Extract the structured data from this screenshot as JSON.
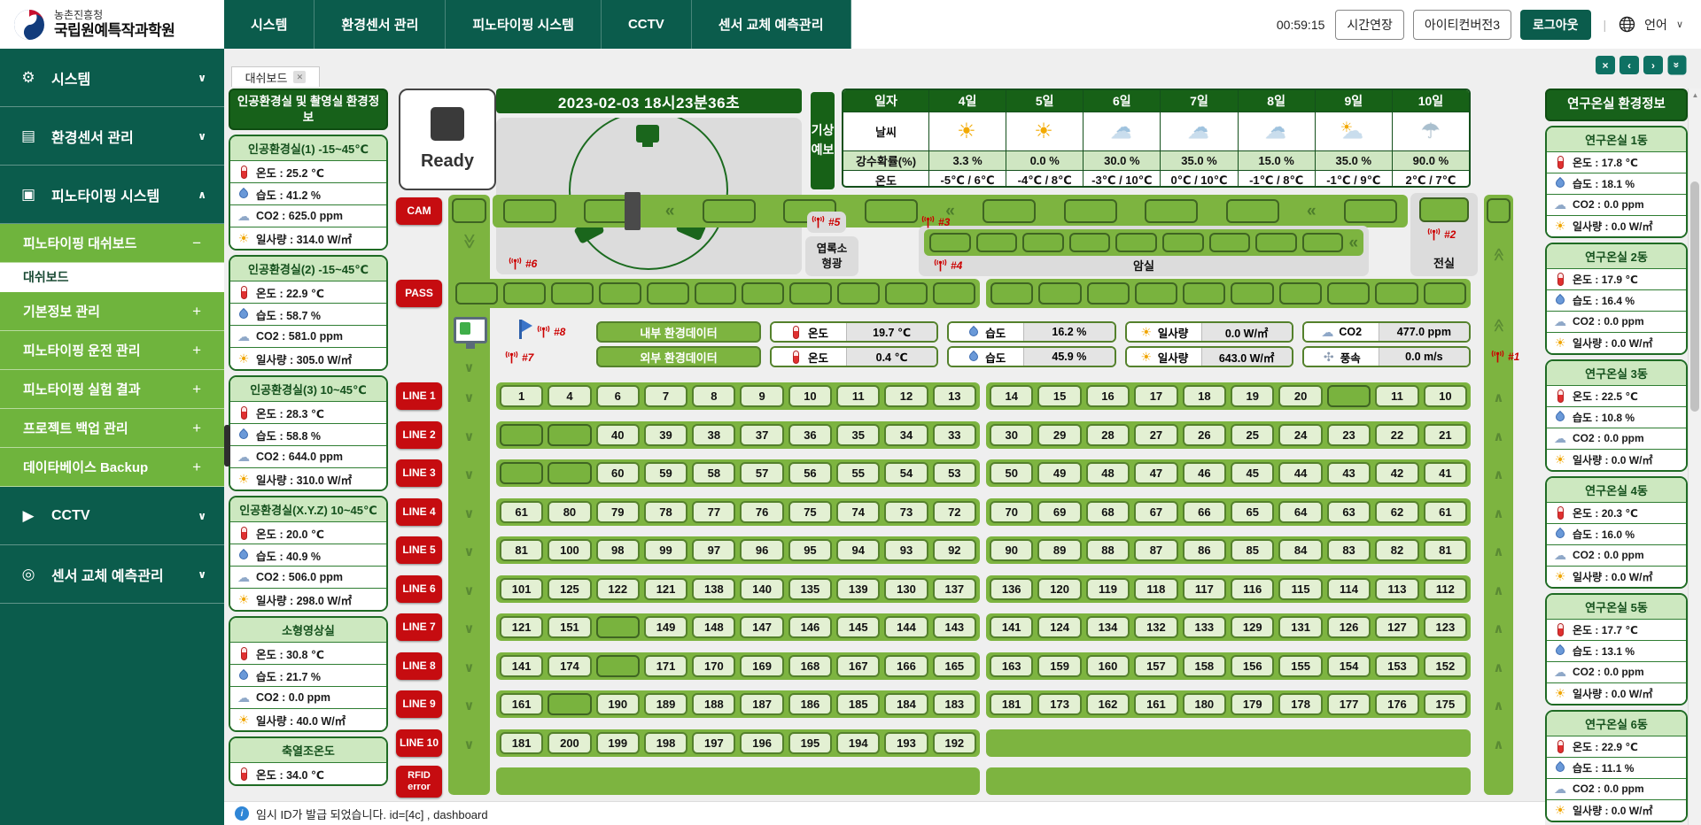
{
  "header": {
    "logo_org": "농촌진흥청",
    "logo_name": "국립원예특작과학원",
    "nav": [
      "시스템",
      "환경센서 관리",
      "피노타이핑 시스템",
      "CCTV",
      "센서 교체 예측관리"
    ],
    "session_timer": "00:59:15",
    "extend_button": "시간연장",
    "account_button": "아이티컨버전3",
    "logout_button": "로그아웃",
    "language_label": "언어"
  },
  "sidebar": {
    "groups_top": [
      {
        "label": "시스템",
        "icon": "gear-icon",
        "glyph": "⚙",
        "chevron": "down"
      },
      {
        "label": "환경센서 관리",
        "icon": "sensor-card-icon",
        "glyph": "▤",
        "chevron": "down"
      },
      {
        "label": "피노타이핑 시스템",
        "icon": "document-icon",
        "glyph": "▣",
        "chevron": "up"
      }
    ],
    "submenu": [
      {
        "label": "피노타이핑 대쉬보드",
        "mark": "−",
        "active": false
      },
      {
        "label": "대쉬보드",
        "mark": "",
        "active": true
      },
      {
        "label": "기본정보 관리",
        "mark": "+",
        "active": false
      },
      {
        "label": "피노타이핑 운전 관리",
        "mark": "+",
        "active": false
      },
      {
        "label": "피노타이핑 실험 결과",
        "mark": "+",
        "active": false
      },
      {
        "label": "프로젝트 백업 관리",
        "mark": "+",
        "active": false
      },
      {
        "label": "데이타베이스 Backup",
        "mark": "+",
        "active": false
      }
    ],
    "groups_bottom": [
      {
        "label": "CCTV",
        "icon": "cctv-icon",
        "glyph": "▶",
        "chevron": "down"
      },
      {
        "label": "센서 교체 예측관리",
        "icon": "sensor-swap-icon",
        "glyph": "◎",
        "chevron": "down"
      }
    ]
  },
  "tab_bar": {
    "active_tab": "대쉬보드"
  },
  "window_buttons": [
    {
      "name": "close",
      "glyph": "×",
      "rotate": false
    },
    {
      "name": "prev",
      "glyph": "‹",
      "rotate": false
    },
    {
      "name": "next",
      "glyph": "›",
      "rotate": false
    },
    {
      "name": "collapse",
      "glyph": "»",
      "rotate": true
    }
  ],
  "left_env": {
    "title": "인공환경실 및 촬영실 환경정보",
    "panels": [
      {
        "name": "인공환경실(1) -15~45℃",
        "rows": [
          {
            "icon": "temp",
            "text": "온도 : 25.2 ℃"
          },
          {
            "icon": "hum",
            "text": "습도 : 41.2 %"
          },
          {
            "icon": "co2",
            "text": "CO2 : 625.0 ppm"
          },
          {
            "icon": "sun",
            "text": "일사량 : 314.0 W/㎡"
          }
        ]
      },
      {
        "name": "인공환경실(2) -15~45℃",
        "rows": [
          {
            "icon": "temp",
            "text": "온도 : 22.9 ℃"
          },
          {
            "icon": "hum",
            "text": "습도 : 58.7 %"
          },
          {
            "icon": "co2",
            "text": "CO2 : 581.0 ppm"
          },
          {
            "icon": "sun",
            "text": "일사량 : 305.0 W/㎡"
          }
        ]
      },
      {
        "name": "인공환경실(3) 10~45℃",
        "rows": [
          {
            "icon": "temp",
            "text": "온도 : 28.3 ℃"
          },
          {
            "icon": "hum",
            "text": "습도 : 58.8 %"
          },
          {
            "icon": "co2",
            "text": "CO2 : 644.0 ppm"
          },
          {
            "icon": "sun",
            "text": "일사량 : 310.0 W/㎡"
          }
        ]
      },
      {
        "name": "인공환경실(X.Y.Z) 10~45℃",
        "rows": [
          {
            "icon": "temp",
            "text": "온도 : 20.0 ℃"
          },
          {
            "icon": "hum",
            "text": "습도 : 40.9 %"
          },
          {
            "icon": "co2",
            "text": "CO2 : 506.0 ppm"
          },
          {
            "icon": "sun",
            "text": "일사량 : 298.0 W/㎡"
          }
        ]
      },
      {
        "name": "소형영상실",
        "rows": [
          {
            "icon": "temp",
            "text": "온도 : 30.8 ℃"
          },
          {
            "icon": "hum",
            "text": "습도 : 21.7 %"
          },
          {
            "icon": "co2",
            "text": "CO2 : 0.0 ppm"
          },
          {
            "icon": "sun",
            "text": "일사량 : 40.0 W/㎡"
          }
        ]
      },
      {
        "name": "축열조온도",
        "rows": [
          {
            "icon": "temp",
            "text": "온도 : 34.0 ℃"
          }
        ]
      }
    ]
  },
  "ready_panel": {
    "label": "Ready"
  },
  "clock_banner": "2023-02-03 18시23분36초",
  "weather": {
    "tab_label": "기상예보",
    "corner": "일자",
    "row_labels": [
      "날씨",
      "강수확률(%)",
      "온도"
    ],
    "days": [
      {
        "day": "4일",
        "icon": "sun",
        "rain": "3.3 %",
        "temp": "-5℃ / 6℃"
      },
      {
        "day": "5일",
        "icon": "sun",
        "rain": "0.0 %",
        "temp": "-4℃ / 8℃"
      },
      {
        "day": "6일",
        "icon": "cloud",
        "rain": "30.0 %",
        "temp": "-3℃ / 10℃"
      },
      {
        "day": "7일",
        "icon": "cloud",
        "rain": "35.0 %",
        "temp": "0℃ / 10℃"
      },
      {
        "day": "8일",
        "icon": "cloud",
        "rain": "15.0 %",
        "temp": "-1℃ / 8℃"
      },
      {
        "day": "9일",
        "icon": "sun-cloud",
        "rain": "35.0 %",
        "temp": "-1℃ / 9℃"
      },
      {
        "day": "10일",
        "icon": "umbrella",
        "rain": "90.0 %",
        "temp": "2℃ / 7℃"
      }
    ]
  },
  "controls": {
    "cam": "CAM",
    "pass": "PASS",
    "lines": [
      "LINE 1",
      "LINE 2",
      "LINE 3",
      "LINE 4",
      "LINE 5",
      "LINE 6",
      "LINE 7",
      "LINE 8",
      "LINE 9",
      "LINE 10"
    ],
    "rfid": "RFID error"
  },
  "zones": {
    "chlorophyll": "엽록소 형광",
    "dark_room": "암실",
    "front_room": "전실"
  },
  "antennas": {
    "a1": "#1",
    "a2": "#2",
    "a3": "#3",
    "a4": "#4",
    "a5": "#5",
    "a6": "#6",
    "a7": "#7",
    "a8": "#8"
  },
  "sensor_strips": [
    {
      "label": "내부 환경데이터",
      "values": [
        {
          "icon": "temp",
          "name": "온도",
          "value": "19.7 ℃"
        },
        {
          "icon": "hum",
          "name": "습도",
          "value": "16.2 %"
        },
        {
          "icon": "sun",
          "name": "일사량",
          "value": "0.0 W/㎡"
        },
        {
          "icon": "co2",
          "name": "CO2",
          "value": "477.0 ppm"
        }
      ]
    },
    {
      "label": "외부 환경데이터",
      "values": [
        {
          "icon": "temp",
          "name": "온도",
          "value": "0.4 ℃"
        },
        {
          "icon": "hum",
          "name": "습도",
          "value": "45.9 %"
        },
        {
          "icon": "sun",
          "name": "일사량",
          "value": "643.0 W/㎡"
        },
        {
          "icon": "wind",
          "name": "풍속",
          "value": "0.0 m/s"
        }
      ]
    }
  ],
  "grid": {
    "rows": [
      {
        "left": [
          "1",
          "4",
          "6",
          "7",
          "8",
          "9",
          "10",
          "11",
          "12",
          "13"
        ],
        "right": [
          "14",
          "15",
          "16",
          "17",
          "18",
          "19",
          "20",
          "",
          "11",
          "10"
        ]
      },
      {
        "left": [
          "",
          "",
          "40",
          "39",
          "38",
          "37",
          "36",
          "35",
          "34",
          "33"
        ],
        "right": [
          "30",
          "29",
          "28",
          "27",
          "26",
          "25",
          "24",
          "23",
          "22",
          "21"
        ]
      },
      {
        "left": [
          "",
          "",
          "60",
          "59",
          "58",
          "57",
          "56",
          "55",
          "54",
          "53"
        ],
        "right": [
          "50",
          "49",
          "48",
          "47",
          "46",
          "45",
          "44",
          "43",
          "42",
          "41"
        ]
      },
      {
        "left": [
          "61",
          "80",
          "79",
          "78",
          "77",
          "76",
          "75",
          "74",
          "73",
          "72"
        ],
        "right": [
          "70",
          "69",
          "68",
          "67",
          "66",
          "65",
          "64",
          "63",
          "62",
          "61"
        ]
      },
      {
        "left": [
          "81",
          "100",
          "98",
          "99",
          "97",
          "96",
          "95",
          "94",
          "93",
          "92"
        ],
        "right": [
          "90",
          "89",
          "88",
          "87",
          "86",
          "85",
          "84",
          "83",
          "82",
          "81"
        ]
      },
      {
        "left": [
          "101",
          "125",
          "122",
          "121",
          "138",
          "140",
          "135",
          "139",
          "130",
          "137"
        ],
        "right": [
          "136",
          "120",
          "119",
          "118",
          "117",
          "116",
          "115",
          "114",
          "113",
          "112"
        ]
      },
      {
        "left": [
          "121",
          "151",
          "",
          "149",
          "148",
          "147",
          "146",
          "145",
          "144",
          "143"
        ],
        "right": [
          "141",
          "124",
          "134",
          "132",
          "133",
          "129",
          "131",
          "126",
          "127",
          "123"
        ]
      },
      {
        "left": [
          "141",
          "174",
          "",
          "171",
          "170",
          "169",
          "168",
          "167",
          "166",
          "165"
        ],
        "right": [
          "163",
          "159",
          "160",
          "157",
          "158",
          "156",
          "155",
          "154",
          "153",
          "152"
        ]
      },
      {
        "left": [
          "161",
          "",
          "190",
          "189",
          "188",
          "187",
          "186",
          "185",
          "184",
          "183"
        ],
        "right": [
          "181",
          "173",
          "162",
          "161",
          "180",
          "179",
          "178",
          "177",
          "176",
          "175"
        ]
      },
      {
        "left": [
          "181",
          "200",
          "199",
          "198",
          "197",
          "196",
          "195",
          "194",
          "193",
          "192"
        ],
        "right": "BAR"
      },
      {
        "left": "BAR",
        "right": "BAR"
      }
    ]
  },
  "right_env": {
    "title": "연구온실 환경정보",
    "panels": [
      {
        "name": "연구온실 1동",
        "rows": [
          {
            "icon": "temp",
            "text": "온도 : 17.8 ℃"
          },
          {
            "icon": "hum",
            "text": "습도 : 18.1 %"
          },
          {
            "icon": "co2",
            "text": "CO2 : 0.0 ppm"
          },
          {
            "icon": "sun",
            "text": "일사량 : 0.0 W/㎡"
          }
        ]
      },
      {
        "name": "연구온실 2동",
        "rows": [
          {
            "icon": "temp",
            "text": "온도 : 17.9 ℃"
          },
          {
            "icon": "hum",
            "text": "습도 : 16.4 %"
          },
          {
            "icon": "co2",
            "text": "CO2 : 0.0 ppm"
          },
          {
            "icon": "sun",
            "text": "일사량 : 0.0 W/㎡"
          }
        ]
      },
      {
        "name": "연구온실 3동",
        "rows": [
          {
            "icon": "temp",
            "text": "온도 : 22.5 ℃"
          },
          {
            "icon": "hum",
            "text": "습도 : 10.8 %"
          },
          {
            "icon": "co2",
            "text": "CO2 : 0.0 ppm"
          },
          {
            "icon": "sun",
            "text": "일사량 : 0.0 W/㎡"
          }
        ]
      },
      {
        "name": "연구온실 4동",
        "rows": [
          {
            "icon": "temp",
            "text": "온도 : 20.3 ℃"
          },
          {
            "icon": "hum",
            "text": "습도 : 16.0 %"
          },
          {
            "icon": "co2",
            "text": "CO2 : 0.0 ppm"
          },
          {
            "icon": "sun",
            "text": "일사량 : 0.0 W/㎡"
          }
        ]
      },
      {
        "name": "연구온실 5동",
        "rows": [
          {
            "icon": "temp",
            "text": "온도 : 17.7 ℃"
          },
          {
            "icon": "hum",
            "text": "습도 : 13.1 %"
          },
          {
            "icon": "co2",
            "text": "CO2 : 0.0 ppm"
          },
          {
            "icon": "sun",
            "text": "일사량 : 0.0 W/㎡"
          }
        ]
      },
      {
        "name": "연구온실 6동",
        "rows": [
          {
            "icon": "temp",
            "text": "온도 : 22.9 ℃"
          },
          {
            "icon": "hum",
            "text": "습도 : 11.1 %"
          },
          {
            "icon": "co2",
            "text": "CO2 : 0.0 ppm"
          },
          {
            "icon": "sun",
            "text": "일사량 : 0.0 W/㎡"
          }
        ]
      }
    ]
  },
  "status_bar": {
    "message": "임시 ID가 발급 되었습니다. id=[4c] , dashboard"
  }
}
